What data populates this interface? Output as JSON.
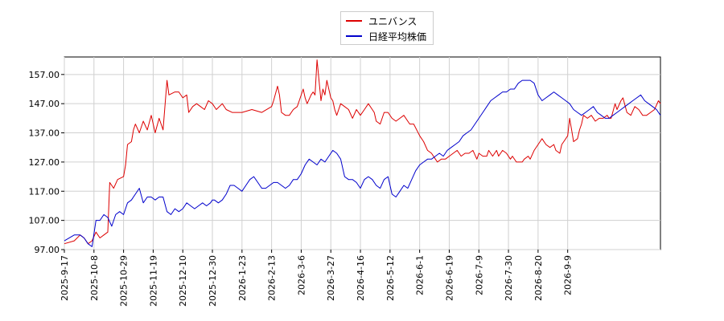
{
  "chart_data": {
    "type": "line",
    "title": "",
    "xlabel": "",
    "ylabel": "",
    "ylim": [
      97.0,
      163.0
    ],
    "yticks": [
      "97.00",
      "107.00",
      "117.00",
      "127.00",
      "137.00",
      "147.00",
      "157.00"
    ],
    "ytick_values": [
      97,
      107,
      117,
      127,
      137,
      147,
      157
    ],
    "xticks": [
      "2025-9-17",
      "2025-10-8",
      "2025-10-29",
      "2025-11-19",
      "2025-12-10",
      "2025-12-30",
      "2026-1-23",
      "2026-2-13",
      "2026-3-6",
      "2026-3-27",
      "2026-4-16",
      "2026-5-12",
      "2026-6-1",
      "2026-6-19",
      "2026-7-9",
      "2026-7-30",
      "2026-8-20",
      "2026-9-9"
    ],
    "xtick_index": [
      0,
      15,
      30,
      45,
      60,
      75,
      90,
      105,
      120,
      135,
      150,
      165,
      180,
      195,
      210,
      225,
      240,
      255
    ],
    "grid": true,
    "legend_position": "top-center",
    "series": [
      {
        "name": "ユニバンス",
        "color": "#dd0000",
        "points": [
          [
            0,
            99
          ],
          [
            5,
            100
          ],
          [
            8,
            102
          ],
          [
            10,
            101
          ],
          [
            12,
            99
          ],
          [
            14,
            100
          ],
          [
            16,
            103
          ],
          [
            18,
            101
          ],
          [
            20,
            102
          ],
          [
            22,
            103
          ],
          [
            23,
            120
          ],
          [
            25,
            118
          ],
          [
            27,
            121
          ],
          [
            30,
            122
          ],
          [
            31,
            126
          ],
          [
            32,
            133
          ],
          [
            34,
            134
          ],
          [
            35,
            138
          ],
          [
            36,
            140
          ],
          [
            38,
            137
          ],
          [
            40,
            141
          ],
          [
            42,
            138
          ],
          [
            44,
            143
          ],
          [
            46,
            137
          ],
          [
            48,
            142
          ],
          [
            50,
            138
          ],
          [
            52,
            155
          ],
          [
            53,
            150
          ],
          [
            56,
            151
          ],
          [
            58,
            151
          ],
          [
            60,
            149
          ],
          [
            62,
            150
          ],
          [
            63,
            144
          ],
          [
            65,
            146
          ],
          [
            67,
            147
          ],
          [
            69,
            146
          ],
          [
            71,
            145
          ],
          [
            73,
            148
          ],
          [
            75,
            147
          ],
          [
            77,
            145
          ],
          [
            80,
            147
          ],
          [
            82,
            145
          ],
          [
            85,
            144
          ],
          [
            90,
            144
          ],
          [
            95,
            145
          ],
          [
            100,
            144
          ],
          [
            105,
            146
          ],
          [
            106,
            148
          ],
          [
            108,
            153
          ],
          [
            109,
            150
          ],
          [
            110,
            144
          ],
          [
            112,
            143
          ],
          [
            114,
            143
          ],
          [
            116,
            145
          ],
          [
            118,
            146
          ],
          [
            119,
            148
          ],
          [
            121,
            152
          ],
          [
            122,
            149
          ],
          [
            123,
            147
          ],
          [
            125,
            150
          ],
          [
            126,
            151
          ],
          [
            127,
            150
          ],
          [
            128,
            162
          ],
          [
            130,
            148
          ],
          [
            131,
            152
          ],
          [
            132,
            150
          ],
          [
            133,
            155
          ],
          [
            135,
            149
          ],
          [
            136,
            148
          ],
          [
            137,
            145
          ],
          [
            138,
            143
          ],
          [
            140,
            147
          ],
          [
            142,
            146
          ],
          [
            144,
            145
          ],
          [
            146,
            142
          ],
          [
            148,
            145
          ],
          [
            150,
            143
          ],
          [
            152,
            145
          ],
          [
            154,
            147
          ],
          [
            156,
            145
          ],
          [
            157,
            144
          ],
          [
            158,
            141
          ],
          [
            160,
            140
          ],
          [
            162,
            144
          ],
          [
            164,
            144
          ],
          [
            166,
            142
          ],
          [
            168,
            141
          ],
          [
            170,
            142
          ],
          [
            172,
            143
          ],
          [
            174,
            141
          ],
          [
            175,
            140
          ],
          [
            177,
            140
          ],
          [
            180,
            136
          ],
          [
            182,
            134
          ],
          [
            184,
            131
          ],
          [
            186,
            130
          ],
          [
            188,
            128
          ],
          [
            189,
            127
          ],
          [
            191,
            128
          ],
          [
            193,
            128
          ],
          [
            195,
            129
          ],
          [
            197,
            130
          ],
          [
            199,
            131
          ],
          [
            201,
            129
          ],
          [
            203,
            130
          ],
          [
            205,
            130
          ],
          [
            207,
            131
          ],
          [
            209,
            128
          ],
          [
            210,
            130
          ],
          [
            212,
            129
          ],
          [
            214,
            129
          ],
          [
            215,
            131
          ],
          [
            217,
            129
          ],
          [
            219,
            131
          ],
          [
            220,
            129
          ],
          [
            222,
            131
          ],
          [
            224,
            130
          ],
          [
            226,
            128
          ],
          [
            227,
            129
          ],
          [
            229,
            127
          ],
          [
            230,
            127
          ],
          [
            232,
            127
          ],
          [
            233,
            128
          ],
          [
            235,
            129
          ],
          [
            236,
            128
          ],
          [
            238,
            131
          ],
          [
            240,
            133
          ],
          [
            241,
            134
          ],
          [
            242,
            135
          ],
          [
            244,
            133
          ],
          [
            246,
            132
          ],
          [
            248,
            133
          ],
          [
            249,
            131
          ],
          [
            251,
            130
          ],
          [
            252,
            133
          ],
          [
            253,
            134
          ],
          [
            255,
            136
          ],
          [
            256,
            142
          ],
          [
            257,
            138
          ],
          [
            258,
            134
          ],
          [
            260,
            135
          ],
          [
            261,
            138
          ],
          [
            262,
            140
          ],
          [
            263,
            143
          ],
          [
            265,
            142
          ],
          [
            267,
            143
          ],
          [
            269,
            141
          ],
          [
            271,
            142
          ],
          [
            273,
            142
          ],
          [
            275,
            143
          ],
          [
            276,
            142
          ],
          [
            277,
            142
          ],
          [
            279,
            147
          ],
          [
            280,
            145
          ],
          [
            282,
            148
          ],
          [
            283,
            149
          ],
          [
            285,
            144
          ],
          [
            287,
            143
          ],
          [
            289,
            146
          ],
          [
            291,
            145
          ],
          [
            293,
            143
          ],
          [
            295,
            143
          ],
          [
            297,
            144
          ],
          [
            299,
            145
          ],
          [
            301,
            148
          ],
          [
            302,
            147
          ]
        ]
      },
      {
        "name": "日経平均株価",
        "color": "#0000cc",
        "points": [
          [
            0,
            100
          ],
          [
            5,
            102
          ],
          [
            8,
            102
          ],
          [
            10,
            101
          ],
          [
            12,
            99
          ],
          [
            14,
            98
          ],
          [
            16,
            107
          ],
          [
            18,
            107
          ],
          [
            20,
            109
          ],
          [
            22,
            108
          ],
          [
            24,
            105
          ],
          [
            26,
            109
          ],
          [
            28,
            110
          ],
          [
            30,
            109
          ],
          [
            32,
            113
          ],
          [
            34,
            114
          ],
          [
            36,
            116
          ],
          [
            38,
            118
          ],
          [
            40,
            113
          ],
          [
            42,
            115
          ],
          [
            44,
            115
          ],
          [
            46,
            114
          ],
          [
            48,
            115
          ],
          [
            50,
            115
          ],
          [
            52,
            110
          ],
          [
            54,
            109
          ],
          [
            56,
            111
          ],
          [
            58,
            110
          ],
          [
            60,
            111
          ],
          [
            62,
            113
          ],
          [
            64,
            112
          ],
          [
            66,
            111
          ],
          [
            68,
            112
          ],
          [
            70,
            113
          ],
          [
            72,
            112
          ],
          [
            74,
            113
          ],
          [
            75,
            114
          ],
          [
            76,
            114
          ],
          [
            78,
            113
          ],
          [
            80,
            114
          ],
          [
            82,
            116
          ],
          [
            84,
            119
          ],
          [
            86,
            119
          ],
          [
            88,
            118
          ],
          [
            90,
            117
          ],
          [
            92,
            119
          ],
          [
            94,
            121
          ],
          [
            96,
            122
          ],
          [
            98,
            120
          ],
          [
            100,
            118
          ],
          [
            102,
            118
          ],
          [
            104,
            119
          ],
          [
            106,
            120
          ],
          [
            108,
            120
          ],
          [
            110,
            119
          ],
          [
            112,
            118
          ],
          [
            114,
            119
          ],
          [
            116,
            121
          ],
          [
            118,
            121
          ],
          [
            120,
            123
          ],
          [
            122,
            126
          ],
          [
            124,
            128
          ],
          [
            126,
            127
          ],
          [
            128,
            126
          ],
          [
            130,
            128
          ],
          [
            132,
            127
          ],
          [
            134,
            129
          ],
          [
            136,
            131
          ],
          [
            138,
            130
          ],
          [
            140,
            128
          ],
          [
            142,
            122
          ],
          [
            144,
            121
          ],
          [
            146,
            121
          ],
          [
            148,
            120
          ],
          [
            150,
            118
          ],
          [
            152,
            121
          ],
          [
            154,
            122
          ],
          [
            156,
            121
          ],
          [
            158,
            119
          ],
          [
            160,
            118
          ],
          [
            162,
            121
          ],
          [
            164,
            122
          ],
          [
            166,
            116
          ],
          [
            168,
            115
          ],
          [
            170,
            117
          ],
          [
            172,
            119
          ],
          [
            174,
            118
          ],
          [
            176,
            121
          ],
          [
            178,
            124
          ],
          [
            180,
            126
          ],
          [
            182,
            127
          ],
          [
            184,
            128
          ],
          [
            186,
            128
          ],
          [
            188,
            129
          ],
          [
            190,
            130
          ],
          [
            192,
            129
          ],
          [
            194,
            131
          ],
          [
            196,
            132
          ],
          [
            198,
            133
          ],
          [
            200,
            134
          ],
          [
            202,
            136
          ],
          [
            204,
            137
          ],
          [
            206,
            138
          ],
          [
            208,
            140
          ],
          [
            210,
            142
          ],
          [
            212,
            144
          ],
          [
            214,
            146
          ],
          [
            216,
            148
          ],
          [
            218,
            149
          ],
          [
            220,
            150
          ],
          [
            222,
            151
          ],
          [
            224,
            151
          ],
          [
            226,
            152
          ],
          [
            228,
            152
          ],
          [
            230,
            154
          ],
          [
            232,
            155
          ],
          [
            234,
            155
          ],
          [
            236,
            155
          ],
          [
            238,
            154
          ],
          [
            240,
            150
          ],
          [
            242,
            148
          ],
          [
            244,
            149
          ],
          [
            246,
            150
          ],
          [
            248,
            151
          ],
          [
            250,
            150
          ],
          [
            252,
            149
          ],
          [
            254,
            148
          ],
          [
            256,
            147
          ],
          [
            258,
            145
          ],
          [
            260,
            144
          ],
          [
            262,
            143
          ],
          [
            264,
            144
          ],
          [
            266,
            145
          ],
          [
            268,
            146
          ],
          [
            270,
            144
          ],
          [
            272,
            143
          ],
          [
            274,
            142
          ],
          [
            276,
            142
          ],
          [
            278,
            143
          ],
          [
            280,
            144
          ],
          [
            282,
            145
          ],
          [
            284,
            146
          ],
          [
            286,
            147
          ],
          [
            288,
            148
          ],
          [
            290,
            149
          ],
          [
            292,
            150
          ],
          [
            294,
            148
          ],
          [
            296,
            147
          ],
          [
            298,
            146
          ],
          [
            300,
            145
          ],
          [
            302,
            143
          ]
        ]
      }
    ]
  }
}
